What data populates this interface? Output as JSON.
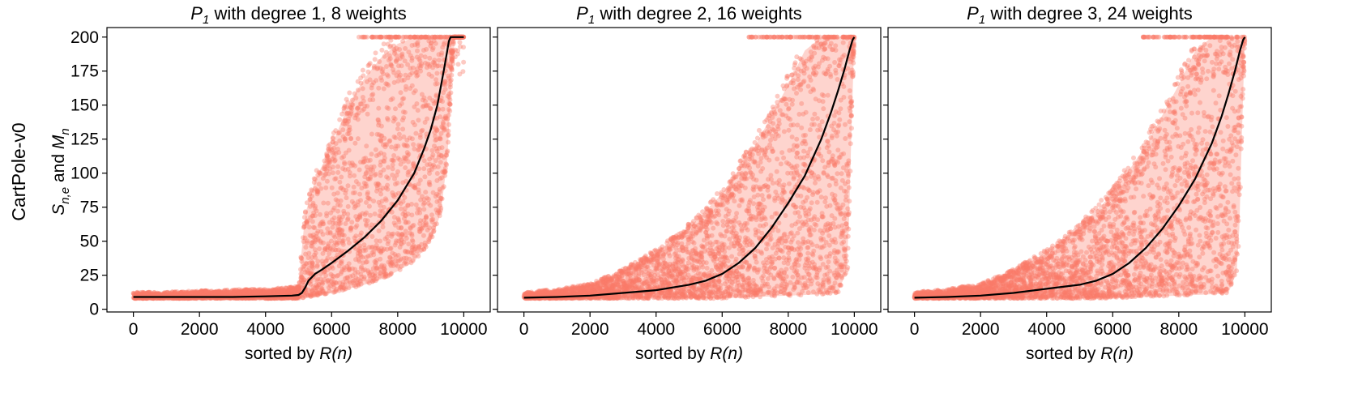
{
  "figure": {
    "row_label": "CartPole-v0",
    "ylabel": {
      "main": "S",
      "sub": "n,e",
      "mid": " and ",
      "main2": "M",
      "sub2": "n"
    },
    "xlabel": {
      "prefix": "sorted by ",
      "italic": "R(n)"
    }
  },
  "colors": {
    "scatter": "#fa7a6a",
    "band": "#fdc6bd",
    "mean_line": "#000000",
    "axis": "#000000",
    "background": "#ffffff"
  },
  "chart_data": [
    {
      "type": "scatter",
      "title": {
        "italic": "P",
        "sub": "1",
        "rest": " with degree 1, 8 weights"
      },
      "xlim": [
        -800,
        10800
      ],
      "ylim": [
        -2,
        207
      ],
      "xticks": [
        0,
        2000,
        4000,
        6000,
        8000,
        10000
      ],
      "yticks": [
        0,
        25,
        50,
        75,
        100,
        125,
        150,
        175,
        200
      ],
      "show_ytick_labels": true,
      "grid": false,
      "series": [
        {
          "kind": "line",
          "x": [
            0,
            1000,
            2000,
            3000,
            4000,
            4800,
            5000,
            5100,
            5200,
            5300,
            5500,
            5700,
            6000,
            6500,
            7000,
            7500,
            8000,
            8500,
            8800,
            9000,
            9200,
            9400,
            9500,
            9550,
            9600,
            9700,
            10000
          ],
          "y": [
            9,
            9,
            9,
            9,
            9.5,
            10,
            10.5,
            12,
            16,
            21,
            26,
            29,
            34,
            43,
            53,
            65,
            80,
            100,
            118,
            132,
            150,
            176,
            190,
            197,
            200,
            200,
            200
          ]
        },
        {
          "kind": "upper_envelope",
          "x": [
            0,
            1000,
            2000,
            3000,
            4000,
            4500,
            5000,
            5100,
            5200,
            5500,
            6000,
            6500,
            7000,
            7500,
            8000,
            8500,
            9000,
            9500,
            10000
          ],
          "y": [
            12,
            12,
            13,
            14,
            14,
            15,
            16,
            45,
            70,
            95,
            120,
            150,
            170,
            185,
            195,
            200,
            200,
            200,
            200
          ]
        },
        {
          "kind": "lower_envelope",
          "x": [
            0,
            4000,
            5000,
            5500,
            6000,
            6500,
            7000,
            7500,
            8000,
            8500,
            9000,
            9300,
            9500,
            9700,
            10000
          ],
          "y": [
            8,
            8,
            8,
            10,
            12,
            15,
            18,
            22,
            28,
            35,
            50,
            70,
            110,
            200,
            200
          ]
        }
      ]
    },
    {
      "type": "scatter",
      "title": {
        "italic": "P",
        "sub": "1",
        "rest": " with degree 2, 16 weights"
      },
      "xlim": [
        -800,
        10800
      ],
      "ylim": [
        -2,
        207
      ],
      "xticks": [
        0,
        2000,
        4000,
        6000,
        8000,
        10000
      ],
      "yticks": [
        0,
        25,
        50,
        75,
        100,
        125,
        150,
        175,
        200
      ],
      "show_ytick_labels": false,
      "grid": false,
      "series": [
        {
          "kind": "line",
          "x": [
            0,
            1000,
            2000,
            3000,
            4000,
            5000,
            5500,
            6000,
            6500,
            7000,
            7500,
            8000,
            8500,
            9000,
            9300,
            9500,
            9700,
            9850,
            9950,
            10000
          ],
          "y": [
            8.5,
            9,
            10,
            12,
            14,
            18,
            21,
            26,
            34,
            45,
            60,
            78,
            98,
            125,
            145,
            160,
            176,
            190,
            198,
            200
          ]
        },
        {
          "kind": "upper_envelope",
          "x": [
            0,
            1000,
            2000,
            3000,
            4000,
            5000,
            6000,
            7000,
            8000,
            8500,
            9000,
            9500,
            10000
          ],
          "y": [
            12,
            14,
            18,
            28,
            42,
            60,
            85,
            120,
            165,
            190,
            200,
            200,
            200
          ]
        },
        {
          "kind": "lower_envelope",
          "x": [
            0,
            5000,
            6000,
            7000,
            8000,
            9000,
            9500,
            9800,
            9900,
            10000
          ],
          "y": [
            8,
            8,
            8,
            9,
            10,
            11,
            12,
            30,
            120,
            200
          ]
        }
      ]
    },
    {
      "type": "scatter",
      "title": {
        "italic": "P",
        "sub": "1",
        "rest": " with degree 3, 24 weights"
      },
      "xlim": [
        -800,
        10800
      ],
      "ylim": [
        -2,
        207
      ],
      "xticks": [
        0,
        2000,
        4000,
        6000,
        8000,
        10000
      ],
      "yticks": [
        0,
        25,
        50,
        75,
        100,
        125,
        150,
        175,
        200
      ],
      "show_ytick_labels": false,
      "grid": false,
      "series": [
        {
          "kind": "line",
          "x": [
            0,
            1000,
            2000,
            3000,
            4000,
            5000,
            5500,
            6000,
            6500,
            7000,
            7500,
            8000,
            8500,
            9000,
            9300,
            9500,
            9700,
            9850,
            9950,
            10000
          ],
          "y": [
            8.5,
            9,
            10,
            12,
            15,
            18,
            21,
            26,
            34,
            45,
            59,
            76,
            96,
            122,
            142,
            158,
            175,
            190,
            198,
            200
          ]
        },
        {
          "kind": "upper_envelope",
          "x": [
            0,
            1000,
            2000,
            3000,
            4000,
            5000,
            6000,
            7000,
            8000,
            8500,
            9000,
            9500,
            10000
          ],
          "y": [
            12,
            14,
            18,
            28,
            42,
            60,
            85,
            120,
            165,
            190,
            200,
            200,
            200
          ]
        },
        {
          "kind": "lower_envelope",
          "x": [
            0,
            5000,
            6000,
            7000,
            8000,
            9000,
            9500,
            9800,
            9900,
            10000
          ],
          "y": [
            8,
            8,
            8,
            9,
            10,
            11,
            12,
            30,
            120,
            200
          ]
        }
      ]
    }
  ]
}
